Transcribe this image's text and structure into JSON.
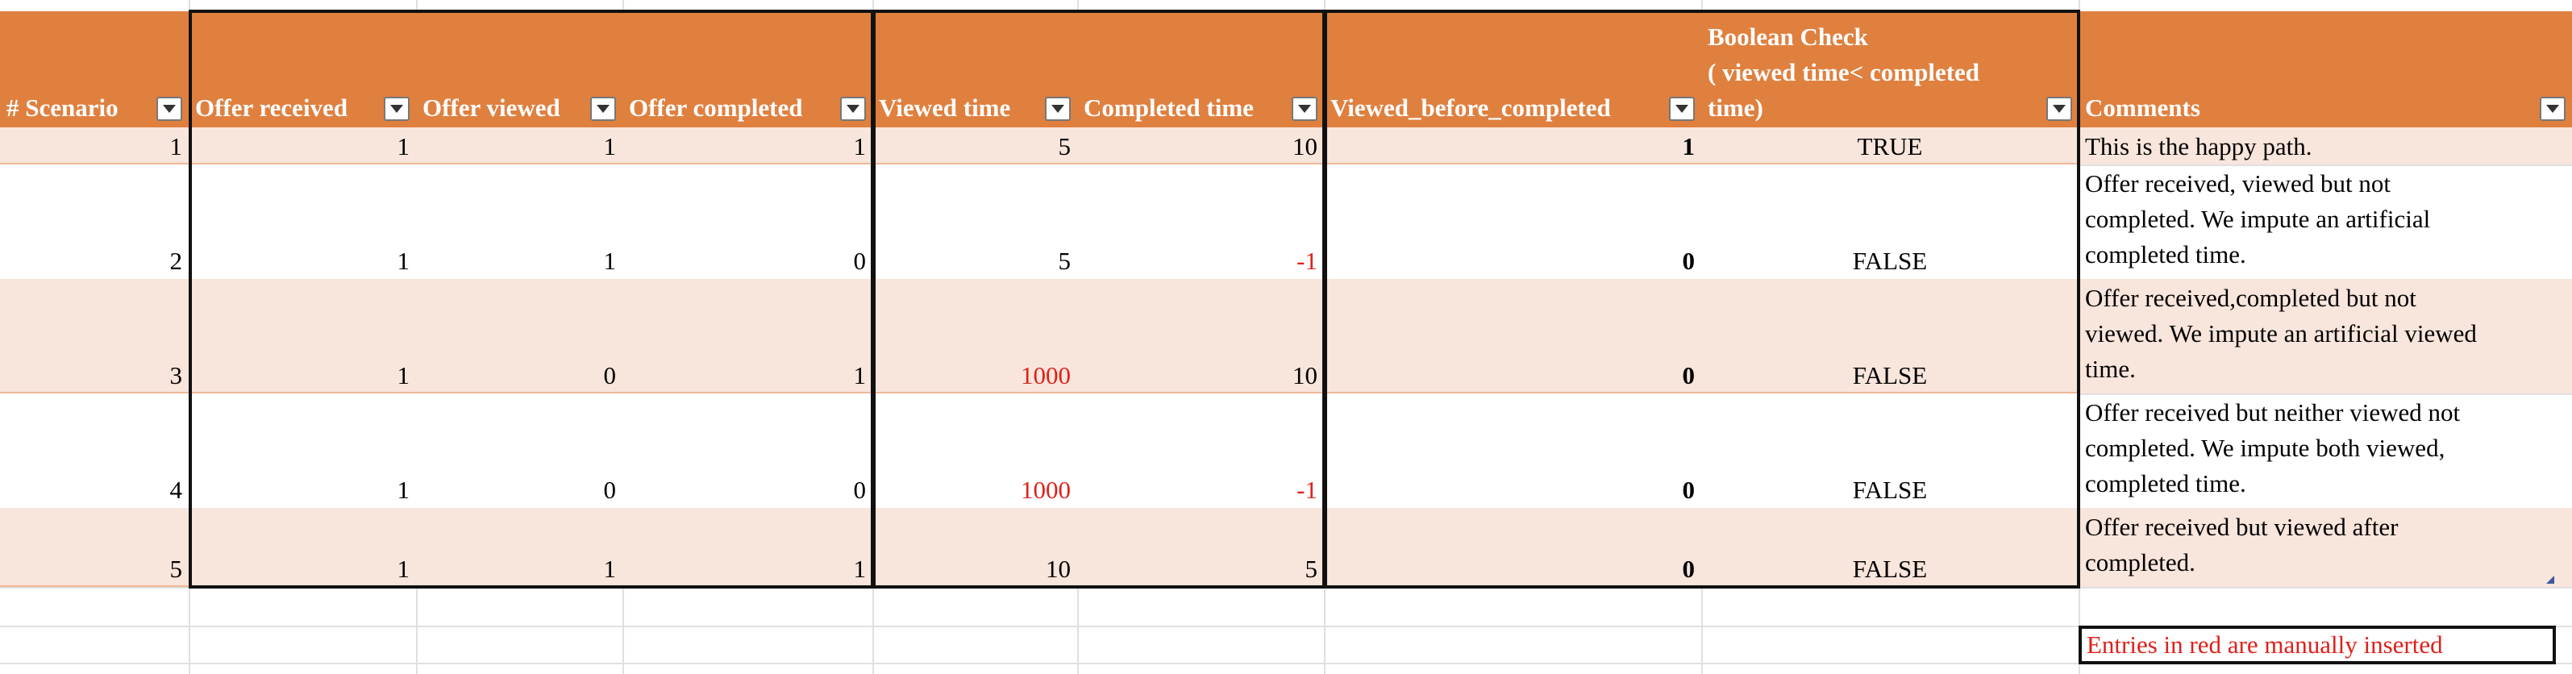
{
  "sheet": {
    "headers": [
      "# Scenario",
      "Offer received",
      "Offer viewed",
      "Offer completed",
      "Viewed time",
      "Completed time",
      "Viewed_before_completed",
      "Boolean Check\n( viewed time< completed\ntime)",
      "Comments"
    ],
    "rows": [
      {
        "scenario": "1",
        "received": "1",
        "viewed": "1",
        "completed": "1",
        "viewed_time": "5",
        "completed_time": "10",
        "vbc": "1",
        "check": "TRUE",
        "comment": "This is the happy path."
      },
      {
        "scenario": "2",
        "received": "1",
        "viewed": "1",
        "completed": "0",
        "viewed_time": "5",
        "completed_time": "-1",
        "vbc": "0",
        "check": "FALSE",
        "comment": "Offer received, viewed but not\ncompleted. We impute an artificial\ncompleted time."
      },
      {
        "scenario": "3",
        "received": "1",
        "viewed": "0",
        "completed": "1",
        "viewed_time": "1000",
        "completed_time": "10",
        "vbc": "0",
        "check": "FALSE",
        "comment": "Offer received,completed but not\nviewed. We impute an artificial viewed\ntime."
      },
      {
        "scenario": "4",
        "received": "1",
        "viewed": "0",
        "completed": "0",
        "viewed_time": "1000",
        "completed_time": "-1",
        "vbc": "0",
        "check": "FALSE",
        "comment": "Offer received but neither viewed not\ncompleted. We impute both viewed,\ncompleted time."
      },
      {
        "scenario": "5",
        "received": "1",
        "viewed": "1",
        "completed": "1",
        "viewed_time": "10",
        "completed_time": "5",
        "vbc": "0",
        "check": "FALSE",
        "comment": "Offer received but viewed after\ncompleted."
      }
    ],
    "manual_red_cells": [
      {
        "row": 2,
        "field": "completed_time"
      },
      {
        "row": 3,
        "field": "viewed_time"
      },
      {
        "row": 4,
        "field": "viewed_time"
      },
      {
        "row": 4,
        "field": "completed_time"
      }
    ],
    "note": "Entries in red are manually inserted",
    "colors": {
      "header_bg": "#e0803f",
      "band_bg": "#f8e5db",
      "manual_text": "#e0201a",
      "gridline": "#e0e0e0"
    }
  }
}
